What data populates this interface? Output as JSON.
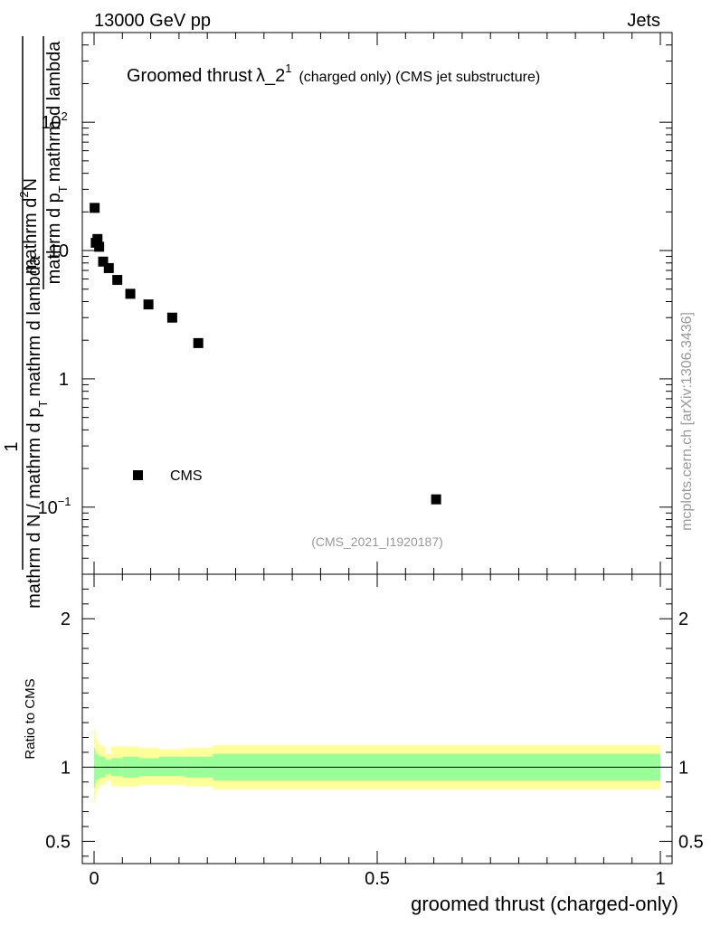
{
  "header": {
    "left": "13000 GeV pp",
    "right": "Jets"
  },
  "side_label": "mcplots.cern.ch [arXiv:1306.3436]",
  "watermark": "(CMS_2021_I1920187)",
  "title_main": "Groomed thrust",
  "title_sym": "λ_2",
  "title_sup": "1",
  "title_rest": "(charged only) (CMS jet substructure)",
  "ylabel_num": "1",
  "ylabel_den": "mathrm d N / mathrm d p",
  "ylabel_den_sub": "T",
  "ylabel_den_rest": "mathrm d lambda",
  "ylabel_mid": "mathrm d",
  "ylabel_mid_sup": "2",
  "ylabel_mid_rest": "N",
  "ylabel_den2": "mathrm d p",
  "ylabel_den2_sub": "T",
  "ylabel_den2_rest": "mathrm d lambda",
  "ratio_ylabel": "Ratio to CMS",
  "xlabel": "groomed thrust (charged-only)",
  "colors": {
    "band_inner": "#99ff99",
    "band_outer": "#ffff99",
    "marker": "#000000"
  },
  "chart_data": {
    "type": "scatter",
    "title": "Groomed thrust λ_2^1 (charged only) (CMS jet substructure)",
    "xlabel": "groomed thrust (charged-only)",
    "yscale": "log",
    "xlim": [
      -0.02,
      1.0
    ],
    "ylim_main": [
      0.03,
      500
    ],
    "yticks_main": [
      {
        "value": 0.1,
        "base": "10",
        "exp": "−1"
      },
      {
        "value": 1,
        "base": "1",
        "exp": ""
      },
      {
        "value": 10,
        "base": "10",
        "exp": ""
      },
      {
        "value": 100,
        "base": "10",
        "exp": "2"
      }
    ],
    "xticks": [
      {
        "value": 0,
        "label": "0"
      },
      {
        "value": 0.5,
        "label": "0.5"
      },
      {
        "value": 1,
        "label": "1"
      }
    ],
    "legend": {
      "label": "CMS",
      "placement": "lower-left"
    },
    "series": [
      {
        "name": "CMS",
        "x": [
          0.001,
          0.003,
          0.006,
          0.009,
          0.016,
          0.026,
          0.041,
          0.064,
          0.096,
          0.138,
          0.184,
          0.604
        ],
        "y": [
          21.5,
          11.5,
          12.3,
          10.7,
          8.2,
          7.3,
          5.9,
          4.6,
          3.8,
          3.0,
          1.9,
          0.115
        ]
      }
    ],
    "ratio": {
      "ylabel": "Ratio to CMS",
      "ylim": [
        0.35,
        2.3
      ],
      "yticks": [
        {
          "value": 0.5,
          "label": "0.5"
        },
        {
          "value": 1,
          "label": "1"
        },
        {
          "value": 2,
          "label": "2"
        }
      ],
      "edges": [
        0,
        0.002,
        0.004,
        0.007,
        0.011,
        0.02,
        0.03,
        0.05,
        0.08,
        0.115,
        0.16,
        0.21,
        1.0
      ],
      "inner_lo": [
        0.86,
        0.89,
        0.91,
        0.92,
        0.93,
        0.95,
        0.94,
        0.93,
        0.94,
        0.94,
        0.93,
        0.91
      ],
      "inner_hi": [
        1.13,
        1.11,
        1.09,
        1.08,
        1.07,
        1.05,
        1.06,
        1.07,
        1.06,
        1.07,
        1.07,
        1.09
      ],
      "outer_lo": [
        0.76,
        0.8,
        0.84,
        0.86,
        0.88,
        0.91,
        0.87,
        0.87,
        0.88,
        0.88,
        0.87,
        0.85
      ],
      "outer_hi": [
        1.26,
        1.22,
        1.18,
        1.16,
        1.14,
        1.09,
        1.14,
        1.14,
        1.13,
        1.12,
        1.13,
        1.15
      ]
    }
  }
}
